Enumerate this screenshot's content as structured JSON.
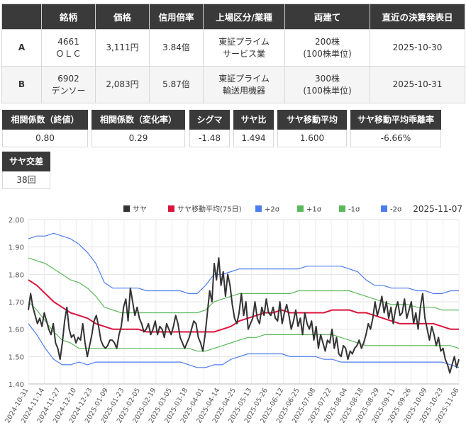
{
  "table": {
    "headers": [
      "",
      "銘柄",
      "価格",
      "信用倍率",
      "上場区分/業種",
      "両建て",
      "直近の決算発表日"
    ],
    "rows": [
      {
        "key": "A",
        "code": "4661",
        "name": "ＯＬＣ",
        "price": "3,111円",
        "margin": "3.84倍",
        "market": "東証プライム",
        "industry": "サービス業",
        "hedge": "200株",
        "unit": "(100株単位)",
        "date": "2025-10-30"
      },
      {
        "key": "B",
        "code": "6902",
        "name": "デンソー",
        "price": "2,083円",
        "margin": "5.87倍",
        "market": "東証プライム",
        "industry": "輸送用機器",
        "hedge": "300株",
        "unit": "(100株単位)",
        "date": "2025-10-31"
      }
    ]
  },
  "metrics": [
    {
      "label": "相関係数（終値）",
      "value": "0.80"
    },
    {
      "label": "相関係数（変化率）",
      "value": "0.29"
    },
    {
      "label": "シグマ",
      "value": "-1.48"
    },
    {
      "label": "サヤ比",
      "value": "1.494"
    },
    {
      "label": "サヤ移動平均",
      "value": "1.600"
    },
    {
      "label": "サヤ移動平均乖離率",
      "value": "-6.66%"
    },
    {
      "label": "サヤ交差",
      "value": "38回"
    }
  ],
  "chart_data": {
    "type": "line",
    "date_label": "2025-11-07",
    "ylim": [
      1.4,
      2.0
    ],
    "yticks": [
      "1.40",
      "1.50",
      "1.60",
      "1.70",
      "1.80",
      "1.90",
      "2.00"
    ],
    "x_tick_labels": [
      "2024-10-31",
      "2024-11-14",
      "2024-11-27",
      "2024-12-10",
      "2024-12-23",
      "2025-01-09",
      "2025-01-23",
      "2025-02-05",
      "2025-02-19",
      "2025-03-05",
      "2025-03-18",
      "2025-04-01",
      "2025-04-14",
      "2025-04-25",
      "2025-05-13",
      "2025-05-26",
      "2025-06-12",
      "2025-06-25",
      "2025-07-08",
      "2025-07-22",
      "2025-08-04",
      "2025-08-18",
      "2025-08-29",
      "2025-09-11",
      "2025-09-26",
      "2025-10-09",
      "2025-10-23",
      "2025-11-06"
    ],
    "grid": true,
    "legend_position": "top",
    "series": [
      {
        "name": "サヤ",
        "color": "#333333",
        "width": 2,
        "values": [
          1.67,
          1.73,
          1.68,
          1.65,
          1.62,
          1.64,
          1.61,
          1.66,
          1.63,
          1.6,
          1.58,
          1.62,
          1.55,
          1.53,
          1.49,
          1.55,
          1.63,
          1.68,
          1.6,
          1.57,
          1.58,
          1.55,
          1.57,
          1.56,
          1.62,
          1.55,
          1.5,
          1.54,
          1.58,
          1.63,
          1.65,
          1.61,
          1.56,
          1.54,
          1.53,
          1.54,
          1.56,
          1.56,
          1.55,
          1.53,
          1.58,
          1.61,
          1.68,
          1.71,
          1.63,
          1.75,
          1.7,
          1.65,
          1.68,
          1.64,
          1.62,
          1.59,
          1.6,
          1.62,
          1.58,
          1.6,
          1.63,
          1.58,
          1.61,
          1.6,
          1.57,
          1.62,
          1.6,
          1.58,
          1.61,
          1.65,
          1.62,
          1.57,
          1.55,
          1.53,
          1.55,
          1.57,
          1.6,
          1.63,
          1.62,
          1.57,
          1.55,
          1.52,
          1.58,
          1.66,
          1.74,
          1.7,
          1.84,
          1.78,
          1.86,
          1.76,
          1.81,
          1.72,
          1.8,
          1.76,
          1.69,
          1.64,
          1.62,
          1.66,
          1.73,
          1.65,
          1.7,
          1.6,
          1.62,
          1.64,
          1.7,
          1.64,
          1.62,
          1.68,
          1.65,
          1.71,
          1.66,
          1.65,
          1.68,
          1.64,
          1.63,
          1.7,
          1.62,
          1.66,
          1.69,
          1.65,
          1.6,
          1.63,
          1.67,
          1.61,
          1.64,
          1.58,
          1.66,
          1.62,
          1.6,
          1.63,
          1.56,
          1.61,
          1.53,
          1.58,
          1.55,
          1.52,
          1.56,
          1.55,
          1.6,
          1.53,
          1.57,
          1.51,
          1.5,
          1.54,
          1.53,
          1.49,
          1.52,
          1.51,
          1.53,
          1.54,
          1.56,
          1.53,
          1.55,
          1.58,
          1.62,
          1.6,
          1.64,
          1.7,
          1.65,
          1.68,
          1.72,
          1.66,
          1.7,
          1.64,
          1.68,
          1.62,
          1.67,
          1.7,
          1.65,
          1.66,
          1.71,
          1.64,
          1.67,
          1.7,
          1.62,
          1.66,
          1.6,
          1.68,
          1.73,
          1.64,
          1.6,
          1.56,
          1.61,
          1.58,
          1.54,
          1.57,
          1.52,
          1.53,
          1.49,
          1.47,
          1.44,
          1.47,
          1.5,
          1.46,
          1.49
        ]
      },
      {
        "name": "サヤ移動平均(75日)",
        "color": "#dc143c",
        "width": 2,
        "values": [
          1.78,
          1.76,
          1.73,
          1.7,
          1.68,
          1.66,
          1.65,
          1.64,
          1.62,
          1.61,
          1.6,
          1.6,
          1.6,
          1.6,
          1.59,
          1.59,
          1.59,
          1.59,
          1.59,
          1.59,
          1.59,
          1.59,
          1.59,
          1.6,
          1.61,
          1.63,
          1.64,
          1.65,
          1.66,
          1.66,
          1.67,
          1.66,
          1.66,
          1.66,
          1.66,
          1.66,
          1.67,
          1.67,
          1.67,
          1.66,
          1.66,
          1.65,
          1.64,
          1.63,
          1.62,
          1.62,
          1.62,
          1.62,
          1.62,
          1.61,
          1.6,
          1.6
        ]
      },
      {
        "name": "+2σ",
        "color": "#4d7cf0",
        "width": 1.2,
        "values": [
          1.93,
          1.94,
          1.94,
          1.95,
          1.94,
          1.93,
          1.91,
          1.88,
          1.84,
          1.77,
          1.75,
          1.75,
          1.75,
          1.75,
          1.74,
          1.74,
          1.74,
          1.74,
          1.74,
          1.73,
          1.73,
          1.76,
          1.8,
          1.8,
          1.81,
          1.82,
          1.82,
          1.82,
          1.82,
          1.82,
          1.82,
          1.82,
          1.82,
          1.83,
          1.83,
          1.83,
          1.83,
          1.83,
          1.82,
          1.81,
          1.78,
          1.76,
          1.76,
          1.75,
          1.75,
          1.75,
          1.74,
          1.74,
          1.73,
          1.73,
          1.74,
          1.74
        ]
      },
      {
        "name": "+1σ",
        "color": "#5cb85c",
        "width": 1.2,
        "values": [
          1.86,
          1.85,
          1.84,
          1.82,
          1.8,
          1.78,
          1.77,
          1.75,
          1.72,
          1.68,
          1.67,
          1.66,
          1.66,
          1.66,
          1.66,
          1.66,
          1.66,
          1.66,
          1.66,
          1.66,
          1.66,
          1.67,
          1.7,
          1.71,
          1.72,
          1.73,
          1.73,
          1.73,
          1.73,
          1.73,
          1.73,
          1.73,
          1.74,
          1.74,
          1.74,
          1.74,
          1.74,
          1.74,
          1.74,
          1.73,
          1.72,
          1.71,
          1.7,
          1.69,
          1.69,
          1.69,
          1.68,
          1.68,
          1.68,
          1.67,
          1.67,
          1.67
        ]
      },
      {
        "name": "-1σ",
        "color": "#5cb85c",
        "width": 1.2,
        "values": [
          1.7,
          1.67,
          1.63,
          1.59,
          1.56,
          1.55,
          1.53,
          1.53,
          1.53,
          1.53,
          1.53,
          1.53,
          1.53,
          1.53,
          1.53,
          1.53,
          1.53,
          1.53,
          1.53,
          1.53,
          1.52,
          1.52,
          1.53,
          1.54,
          1.55,
          1.56,
          1.57,
          1.57,
          1.58,
          1.58,
          1.58,
          1.58,
          1.58,
          1.58,
          1.58,
          1.58,
          1.58,
          1.57,
          1.56,
          1.55,
          1.54,
          1.54,
          1.54,
          1.54,
          1.54,
          1.54,
          1.54,
          1.54,
          1.54,
          1.54,
          1.54,
          1.53
        ]
      },
      {
        "name": "-2σ",
        "color": "#4d7cf0",
        "width": 1.2,
        "values": [
          1.62,
          1.58,
          1.53,
          1.49,
          1.47,
          1.47,
          1.48,
          1.47,
          1.48,
          1.48,
          1.48,
          1.48,
          1.48,
          1.48,
          1.48,
          1.48,
          1.48,
          1.48,
          1.48,
          1.47,
          1.46,
          1.46,
          1.47,
          1.47,
          1.49,
          1.5,
          1.51,
          1.51,
          1.51,
          1.51,
          1.51,
          1.5,
          1.5,
          1.5,
          1.5,
          1.49,
          1.49,
          1.48,
          1.48,
          1.48,
          1.48,
          1.48,
          1.48,
          1.48,
          1.48,
          1.48,
          1.48,
          1.48,
          1.48,
          1.48,
          1.47,
          1.46
        ]
      }
    ]
  }
}
